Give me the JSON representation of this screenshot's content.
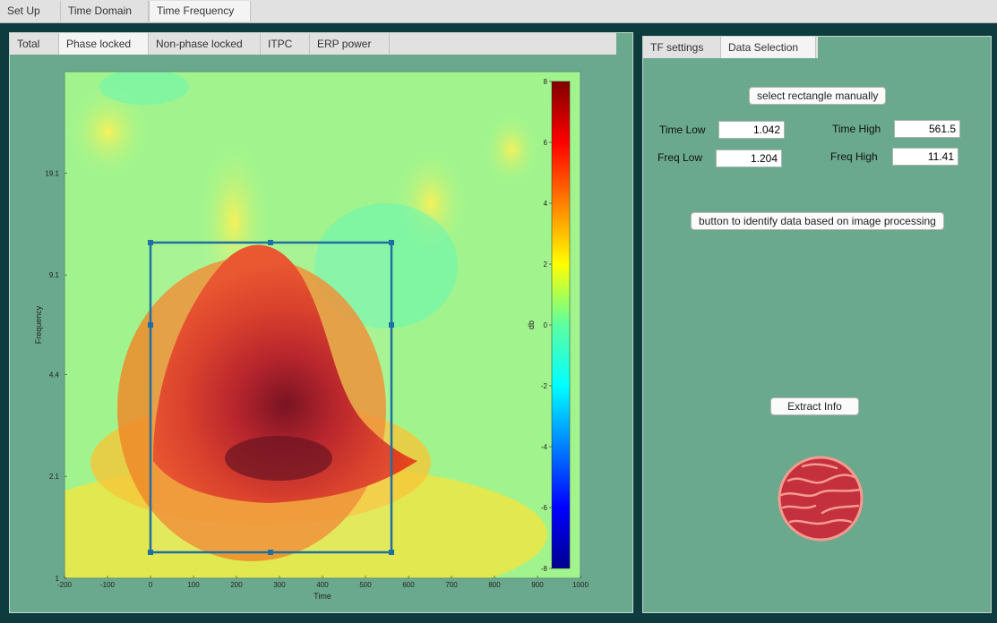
{
  "top_tabs": [
    "Set Up",
    "Time Domain",
    "Time Frequency"
  ],
  "sub_tabs": [
    "Total",
    "Phase locked",
    "Non-phase locked",
    "ITPC",
    "ERP power"
  ],
  "right_tabs": [
    "TF settings",
    "Data Selection"
  ],
  "data_selection": {
    "select_rect_label": "select rectangle manually",
    "time_low_label": "Time Low",
    "time_low_value": "1.042",
    "time_high_label": "Time High",
    "time_high_value": "561.5",
    "freq_low_label": "Freq Low",
    "freq_low_value": "1.204",
    "freq_high_label": "Freq High",
    "freq_high_value": "11.41",
    "identify_label": "button to identify data based on image processing",
    "extract_label": "Extract Info"
  },
  "plot": {
    "xlabel": "Time",
    "ylabel": "Frequency",
    "colorbar_label": "db",
    "x_ticks": [
      "-200",
      "-100",
      "0",
      "100",
      "200",
      "300",
      "400",
      "500",
      "600",
      "700",
      "800",
      "900",
      "1000"
    ],
    "y_ticks": [
      "1",
      "2.1",
      "4.4",
      "9.1",
      "19.1"
    ],
    "cbar_ticks": [
      "8",
      "6",
      "4",
      "2",
      "0",
      "-2",
      "-4",
      "-6",
      "-8"
    ]
  },
  "chart_data": {
    "type": "heatmap",
    "xlabel": "Time",
    "ylabel": "Frequency",
    "xlim": [
      -200,
      1000
    ],
    "ylim": [
      1,
      40
    ],
    "y_scale": "log",
    "color_range": [
      -8,
      8
    ],
    "colorbar_label": "db",
    "peak": {
      "time": 280,
      "frequency": 2.1,
      "value": 8
    },
    "selection": {
      "time_low": 1.042,
      "time_high": 561.5,
      "freq_low": 1.204,
      "freq_high": 11.41
    }
  },
  "colors": {
    "panel_bg": "#6aa98d",
    "page_bg": "#0d3b3e",
    "selection_stroke": "#1f6fa0",
    "icon_fill": "#c4303e",
    "icon_stroke": "#f59a8e"
  },
  "icons": {
    "status": "planet-icon"
  }
}
